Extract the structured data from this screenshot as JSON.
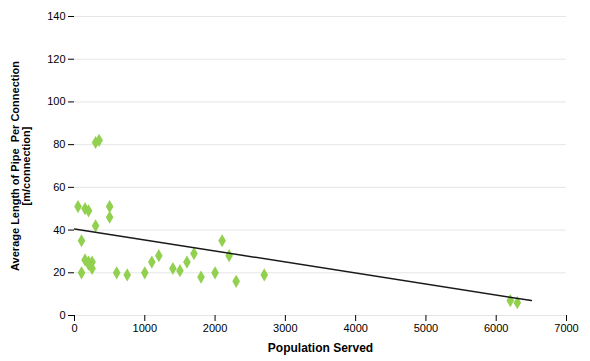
{
  "chart_data": {
    "type": "scatter",
    "xlabel": "Population Served",
    "ylabel": "Average Length of Pipe  Per Connection\n[m/connection]",
    "series": [
      {
        "type": "scatter",
        "color": "#92d050",
        "marker": "diamond",
        "x": [
          50,
          300,
          350,
          100,
          150,
          200,
          100,
          200,
          250,
          300,
          150,
          200,
          250,
          500,
          500,
          600,
          750,
          1000,
          1100,
          1200,
          1400,
          1500,
          1600,
          1700,
          1800,
          2000,
          2100,
          2200,
          2300,
          2700,
          6200,
          6300
        ],
        "values": [
          51,
          81,
          82,
          35,
          50,
          49,
          20,
          25,
          25,
          42,
          26,
          24,
          22,
          46,
          51,
          20,
          19,
          20,
          25,
          28,
          22,
          21,
          25,
          29,
          18,
          20,
          35,
          28,
          16,
          19,
          7,
          6
        ]
      },
      {
        "type": "line",
        "color": "#1a1a1a",
        "line_style": "solid",
        "x": [
          0,
          6500
        ],
        "values": [
          40.5,
          7.0
        ]
      }
    ],
    "xlim": [
      0,
      7000
    ],
    "ylim": [
      0,
      140
    ],
    "xticks": [
      0,
      1000,
      2000,
      3000,
      4000,
      5000,
      6000,
      7000
    ],
    "yticks": [
      0,
      20,
      40,
      60,
      80,
      100,
      120,
      140
    ],
    "grid": "y"
  }
}
